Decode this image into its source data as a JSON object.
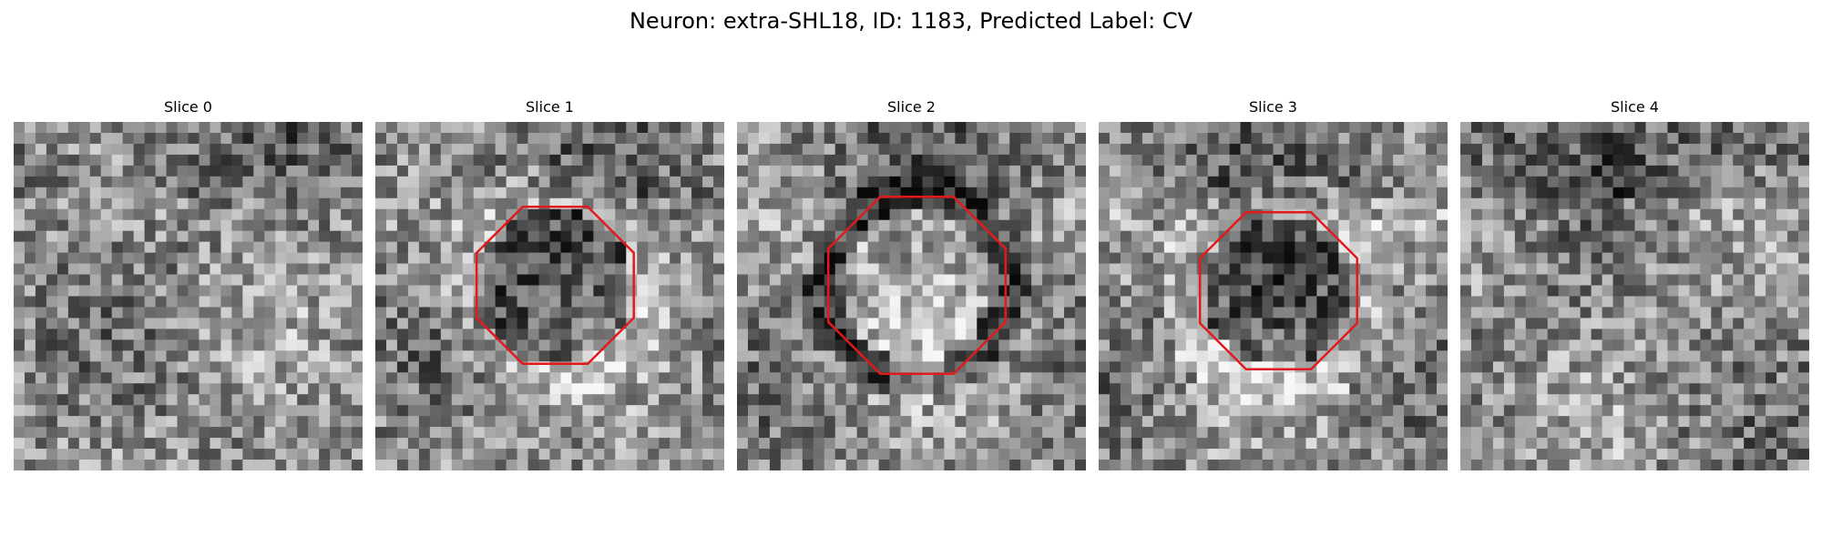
{
  "figure": {
    "title": "Neuron: extra-SHL18, ID: 1183, Predicted Label: CV"
  },
  "colors": {
    "background": "#ffffff",
    "outline": "#e31a1c"
  },
  "panels": [
    {
      "title": "Slice 0",
      "has_outline": false
    },
    {
      "title": "Slice 1",
      "has_outline": true
    },
    {
      "title": "Slice 2",
      "has_outline": true
    },
    {
      "title": "Slice 3",
      "has_outline": true
    },
    {
      "title": "Slice 4",
      "has_outline": false
    }
  ]
}
